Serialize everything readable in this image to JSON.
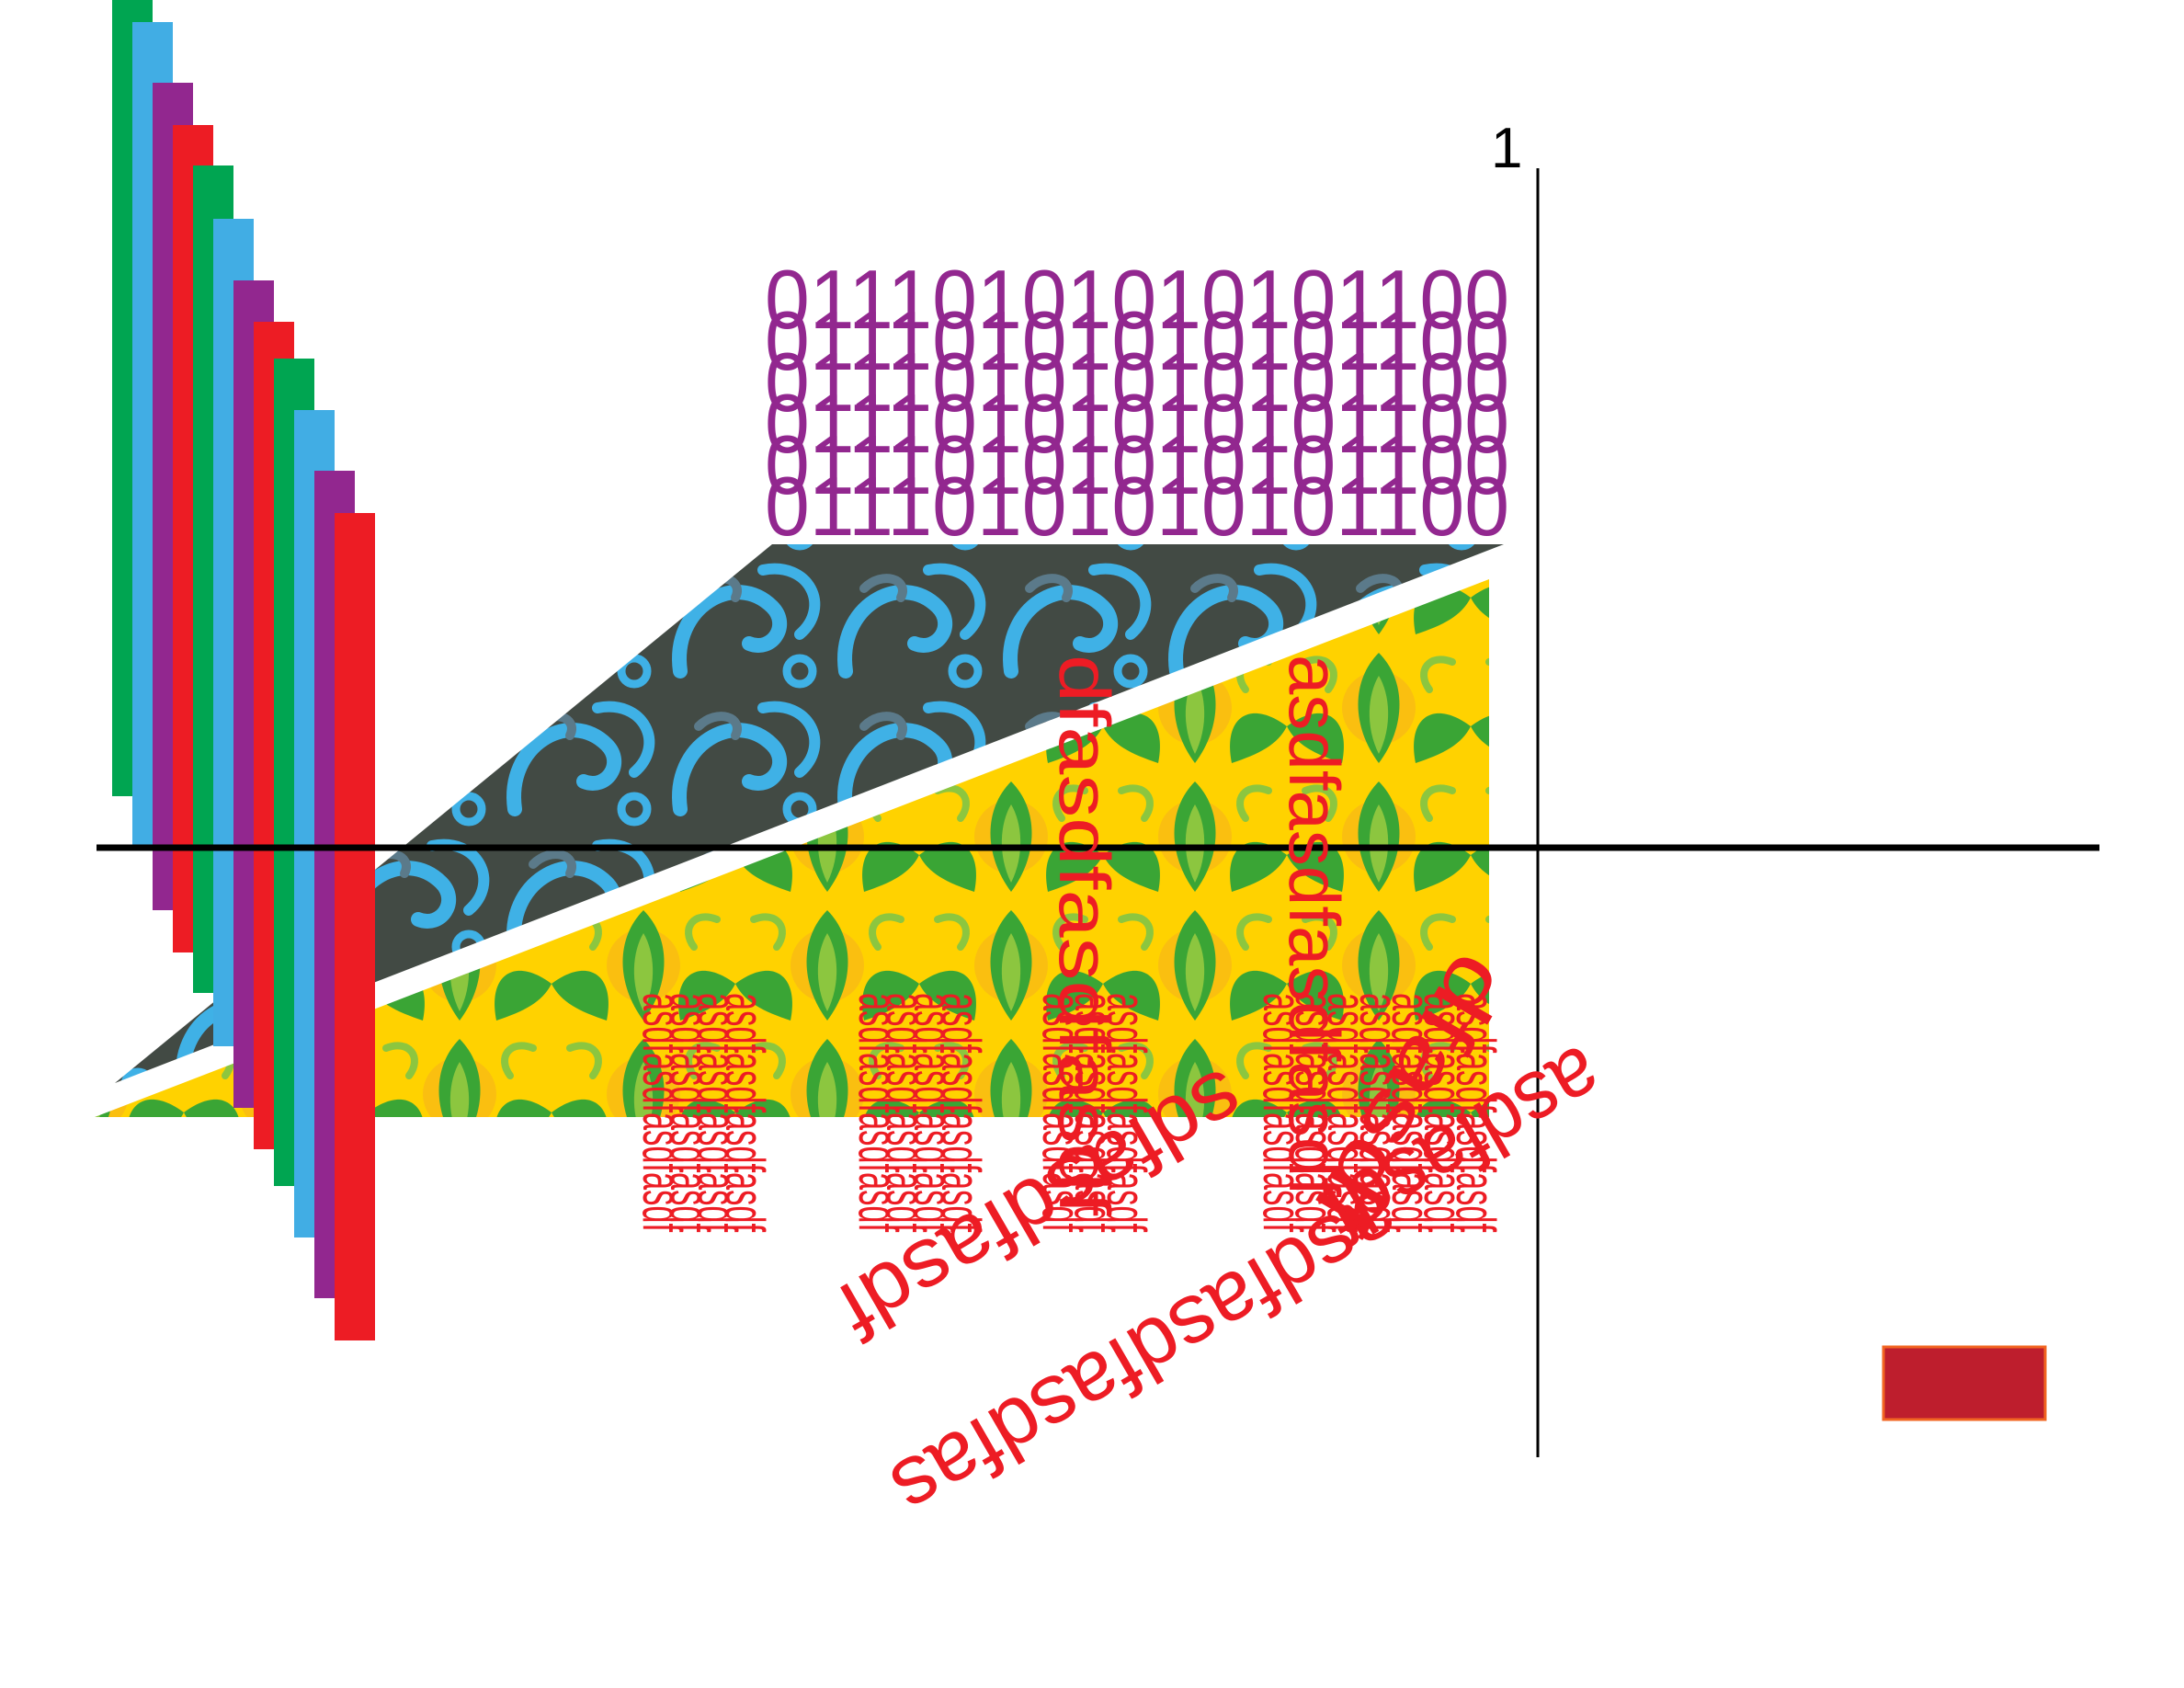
{
  "axis_label": "1",
  "binary_text": "01110101010101100",
  "vertical_words": {
    "word_a": "dfasdfasdfasdf",
    "word_b": "asdfasdfasdfasdf"
  },
  "diagonal_words": {
    "word_1": "sdfasdfasdf",
    "word_2": "asdfasdfasdfas",
    "word_3": "dfasdf",
    "word_4": "asdfasdf"
  },
  "colors": {
    "bar_green": "#00a551",
    "bar_blue": "#41ade4",
    "bar_purple": "#92278f",
    "bar_red": "#ed1c24",
    "text_red": "#ed1c24",
    "text_purple": "#92278f",
    "pattern_dark": "#424a44",
    "pattern_blue": "#3fb1e6",
    "pattern_yellow": "#ffd200",
    "pattern_green": "#3aa535",
    "swatch": "#be1e2d",
    "axis": "#000000"
  },
  "icons": {
    "swatch": "red-swatch-rectangle"
  }
}
